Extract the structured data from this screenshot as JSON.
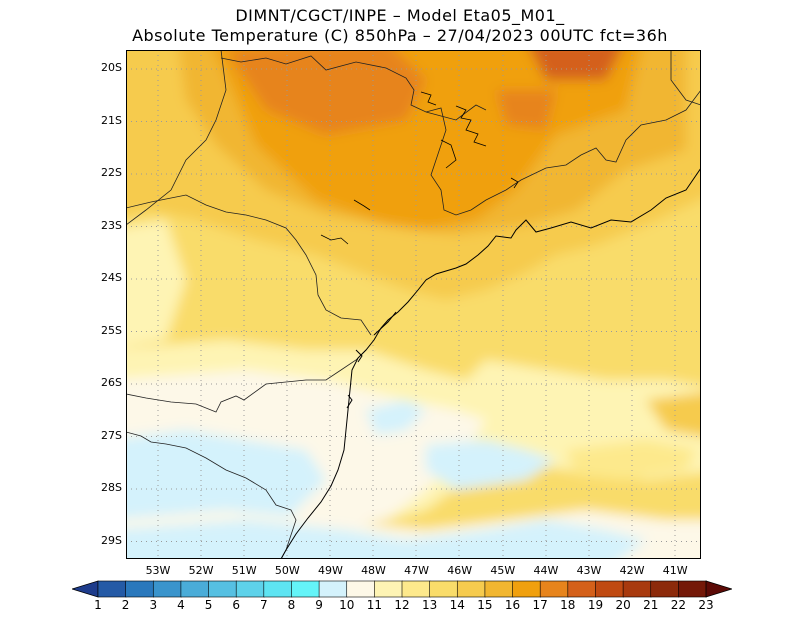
{
  "title": {
    "line1": "DIMNT/CGCT/INPE  –   Model Eta05_M01_",
    "line2": "Absolute Temperature (C) 850hPa  –   27/04/2023 00UTC fct=36h"
  },
  "map": {
    "lat_labels": [
      "20S",
      "21S",
      "22S",
      "23S",
      "24S",
      "25S",
      "26S",
      "27S",
      "28S",
      "29S"
    ],
    "lon_labels": [
      "53W",
      "52W",
      "51W",
      "50W",
      "49W",
      "48W",
      "47W",
      "46W",
      "45W",
      "44W",
      "43W",
      "42W",
      "41W"
    ],
    "gridlines": "dotted"
  },
  "colorbar": {
    "labels": [
      "1",
      "2",
      "3",
      "4",
      "5",
      "6",
      "7",
      "8",
      "9",
      "10",
      "11",
      "12",
      "13",
      "14",
      "15",
      "16",
      "17",
      "18",
      "19",
      "20",
      "21",
      "22",
      "23"
    ],
    "colors": [
      "#1e3c8c",
      "#245aa6",
      "#2a78bc",
      "#3a94cc",
      "#4aacd8",
      "#56c0e2",
      "#5ed2ea",
      "#5ee4f2",
      "#64f4f8",
      "#d4f2fc",
      "#fdf8e8",
      "#fef4b4",
      "#fde98c",
      "#f9dc6a",
      "#f6cb4e",
      "#f1b630",
      "#f0a00e",
      "#e7841c",
      "#d4601a",
      "#c04a12",
      "#a83a0e",
      "#8c2a0a",
      "#741808",
      "#5c0a06"
    ]
  }
}
